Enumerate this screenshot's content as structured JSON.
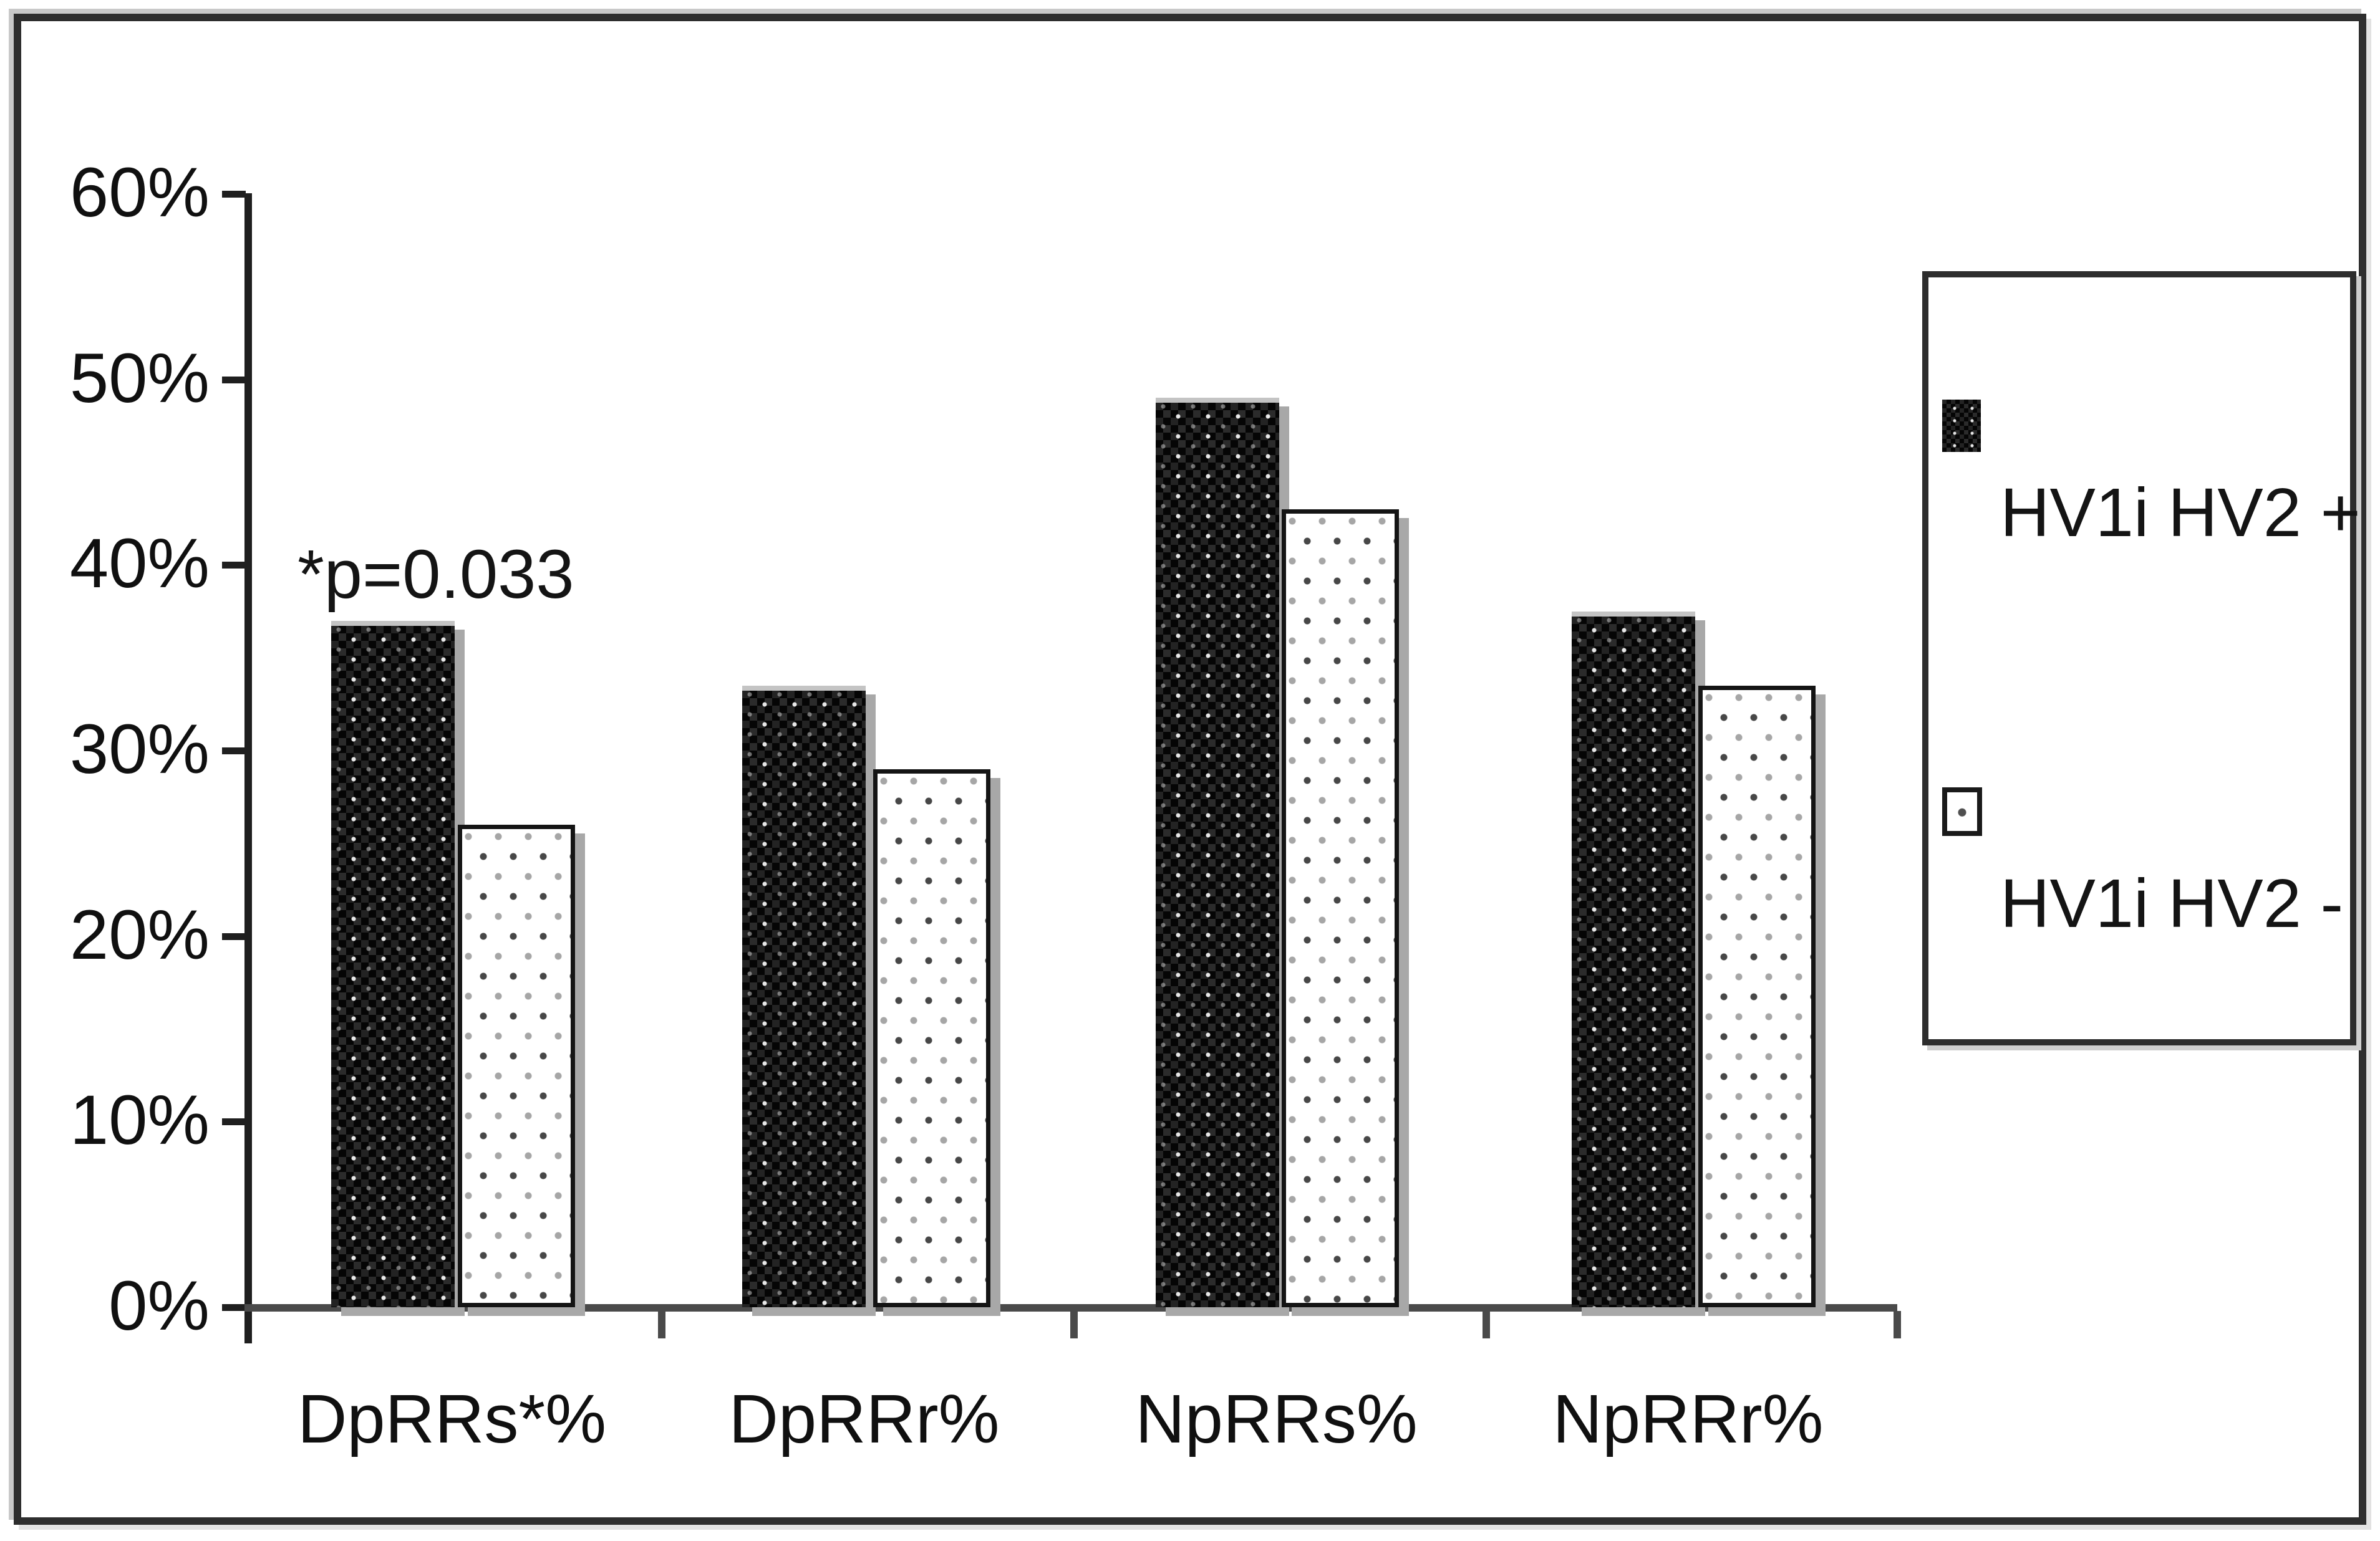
{
  "chart_data": {
    "type": "bar",
    "title": "",
    "xlabel": "",
    "ylabel": "",
    "categories": [
      "DpRRs*%",
      "DpRRr%",
      "NpRRs%",
      "NpRRr%"
    ],
    "series": [
      {
        "name": "HV1i HV2 +",
        "style": "dark-checker-texture",
        "values": [
          37,
          33.5,
          49,
          37.5
        ]
      },
      {
        "name": "HV1i HV2 -",
        "style": "white-dotted-texture",
        "values": [
          26,
          29,
          43,
          33.5
        ]
      }
    ],
    "value_unit": "%",
    "ylim": [
      0,
      60
    ],
    "yticks": [
      {
        "v": 0,
        "label": "0%"
      },
      {
        "v": 10,
        "label": "10%"
      },
      {
        "v": 20,
        "label": "20%"
      },
      {
        "v": 30,
        "label": "30%"
      },
      {
        "v": 40,
        "label": "40%"
      },
      {
        "v": 50,
        "label": "50%"
      },
      {
        "v": 60,
        "label": "60%"
      }
    ],
    "grid": false,
    "legend_position": "right",
    "annotation": "*p=0.033",
    "annotation_target": "DpRRs*% / HV1i HV2 + bar"
  },
  "legend": {
    "items": [
      {
        "label": "HV1i HV2 +",
        "swatch": "dark-checker-swatch"
      },
      {
        "label": "HV1i HV2 -",
        "swatch": "white-dotted-swatch"
      }
    ]
  },
  "colors": {
    "frame_border": "#2e2e2e",
    "axis": "#1f1f1f",
    "baseline": "#4a4a4a",
    "bar_dark": "#050505",
    "bar_white": "#ffffff",
    "bar_border": "#141414",
    "bar_shadow": "#a8a8a8",
    "text": "#141414",
    "background": "#ffffff"
  }
}
